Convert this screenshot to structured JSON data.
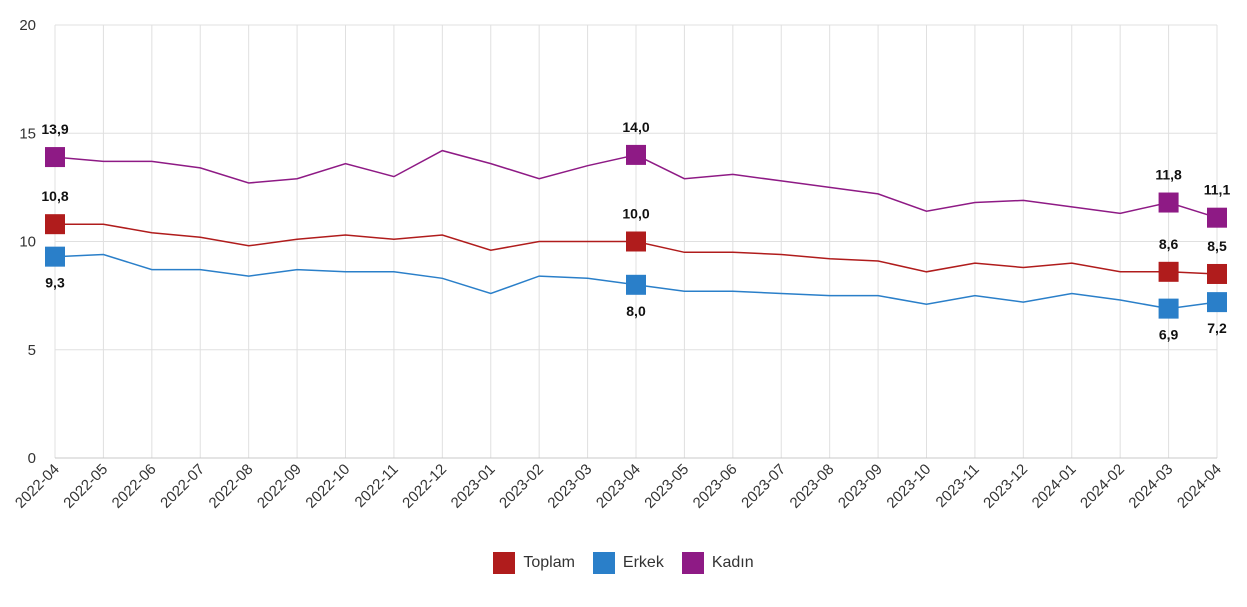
{
  "chart_data": {
    "type": "line",
    "categories": [
      "2022-04",
      "2022-05",
      "2022-06",
      "2022-07",
      "2022-08",
      "2022-09",
      "2022-10",
      "2022-11",
      "2022-12",
      "2023-01",
      "2023-02",
      "2023-03",
      "2023-04",
      "2023-05",
      "2023-06",
      "2023-07",
      "2023-08",
      "2023-09",
      "2023-10",
      "2023-11",
      "2023-12",
      "2024-01",
      "2024-02",
      "2024-03",
      "2024-04"
    ],
    "ylim": [
      0,
      20
    ],
    "yticks": [
      0,
      5,
      10,
      15,
      20
    ],
    "ytick_labels": [
      "0",
      "5",
      "10",
      "15",
      "20"
    ],
    "grid": true,
    "legend_position": "bottom-center",
    "series": [
      {
        "name": "Toplam",
        "color": "#b01c1c",
        "values": [
          10.8,
          10.8,
          10.4,
          10.2,
          9.8,
          10.1,
          10.3,
          10.1,
          10.3,
          9.6,
          10.0,
          10.0,
          10.0,
          9.5,
          9.5,
          9.4,
          9.2,
          9.1,
          8.6,
          9.0,
          8.8,
          9.0,
          8.6,
          8.6,
          8.5
        ],
        "labeled_points": [
          {
            "index": 0,
            "label": "10,8",
            "side": "above"
          },
          {
            "index": 12,
            "label": "10,0",
            "side": "above"
          },
          {
            "index": 23,
            "label": "8,6",
            "side": "above"
          },
          {
            "index": 24,
            "label": "8,5",
            "side": "above"
          }
        ]
      },
      {
        "name": "Erkek",
        "color": "#2a7fc9",
        "values": [
          9.3,
          9.4,
          8.7,
          8.7,
          8.4,
          8.7,
          8.6,
          8.6,
          8.3,
          7.6,
          8.4,
          8.3,
          8.0,
          7.7,
          7.7,
          7.6,
          7.5,
          7.5,
          7.1,
          7.5,
          7.2,
          7.6,
          7.3,
          6.9,
          7.2
        ],
        "labeled_points": [
          {
            "index": 0,
            "label": "9,3",
            "side": "below"
          },
          {
            "index": 12,
            "label": "8,0",
            "side": "below"
          },
          {
            "index": 23,
            "label": "6,9",
            "side": "below"
          },
          {
            "index": 24,
            "label": "7,2",
            "side": "below"
          }
        ]
      },
      {
        "name": "Kadın",
        "color": "#8e1a85",
        "values": [
          13.9,
          13.7,
          13.7,
          13.4,
          12.7,
          12.9,
          13.6,
          13.0,
          14.2,
          13.6,
          12.9,
          13.5,
          14.0,
          12.9,
          13.1,
          12.8,
          12.5,
          12.2,
          11.4,
          11.8,
          11.9,
          11.6,
          11.3,
          11.8,
          11.1
        ],
        "labeled_points": [
          {
            "index": 0,
            "label": "13,9",
            "side": "above"
          },
          {
            "index": 12,
            "label": "14,0",
            "side": "above"
          },
          {
            "index": 23,
            "label": "11,8",
            "side": "above"
          },
          {
            "index": 24,
            "label": "11,1",
            "side": "above"
          }
        ]
      }
    ]
  }
}
